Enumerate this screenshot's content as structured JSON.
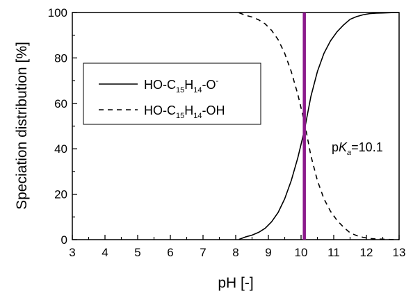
{
  "chart_data": {
    "type": "line",
    "xlabel": "pH [-]",
    "ylabel": "Speciation distribution [%]",
    "xlim": [
      3,
      13
    ],
    "ylim": [
      0,
      100
    ],
    "xticks": [
      3,
      4,
      5,
      6,
      7,
      8,
      9,
      10,
      11,
      12,
      13
    ],
    "yticks": [
      0,
      20,
      40,
      60,
      80,
      100
    ],
    "grid": false,
    "legend_placement": "upper-left",
    "series": [
      {
        "name": "HO-C15H14-O-",
        "legend_parts": [
          "HO-C",
          "15",
          "H",
          "14",
          "-O",
          "-"
        ],
        "style": "solid",
        "color": "#000000",
        "x": [
          8.1,
          8.3,
          8.5,
          8.7,
          8.9,
          9.1,
          9.3,
          9.5,
          9.7,
          9.9,
          10.1,
          10.3,
          10.5,
          10.7,
          10.9,
          11.1,
          11.3,
          11.5,
          11.7,
          11.9,
          12.1,
          12.3,
          12.5,
          12.7,
          12.9,
          13.0
        ],
        "y": [
          0.1,
          1.2,
          2.0,
          3.2,
          5.0,
          7.9,
          12.0,
          18.0,
          26.0,
          36.0,
          48.0,
          63.0,
          74.0,
          82.0,
          87.5,
          91.5,
          94.5,
          97.0,
          98.2,
          99.0,
          99.5,
          99.7,
          99.8,
          99.9,
          100.0,
          100.0
        ]
      },
      {
        "name": "HO-C15H14-OH",
        "legend_parts": [
          "HO-C",
          "15",
          "H",
          "14",
          "-OH",
          ""
        ],
        "style": "dashed",
        "color": "#000000",
        "x": [
          8.1,
          8.3,
          8.5,
          8.7,
          8.9,
          9.1,
          9.3,
          9.5,
          9.7,
          9.9,
          10.1,
          10.3,
          10.5,
          10.7,
          10.9,
          11.1,
          11.3,
          11.5,
          11.7,
          11.9,
          12.1,
          12.3,
          12.5,
          12.7,
          12.9,
          13.0
        ],
        "y": [
          99.9,
          98.8,
          98.0,
          96.8,
          95.0,
          92.1,
          88.0,
          82.0,
          74.0,
          64.0,
          52.0,
          37.0,
          26.0,
          18.0,
          12.5,
          8.5,
          5.5,
          3.0,
          1.8,
          1.0,
          0.5,
          0.3,
          0.2,
          0.1,
          0.0,
          0.0
        ]
      }
    ],
    "annotations": [
      {
        "type": "vline",
        "x": 10.1,
        "color": "#8B1A8B",
        "text_parts": [
          "p",
          "K",
          "a",
          "=10.1"
        ]
      }
    ]
  }
}
